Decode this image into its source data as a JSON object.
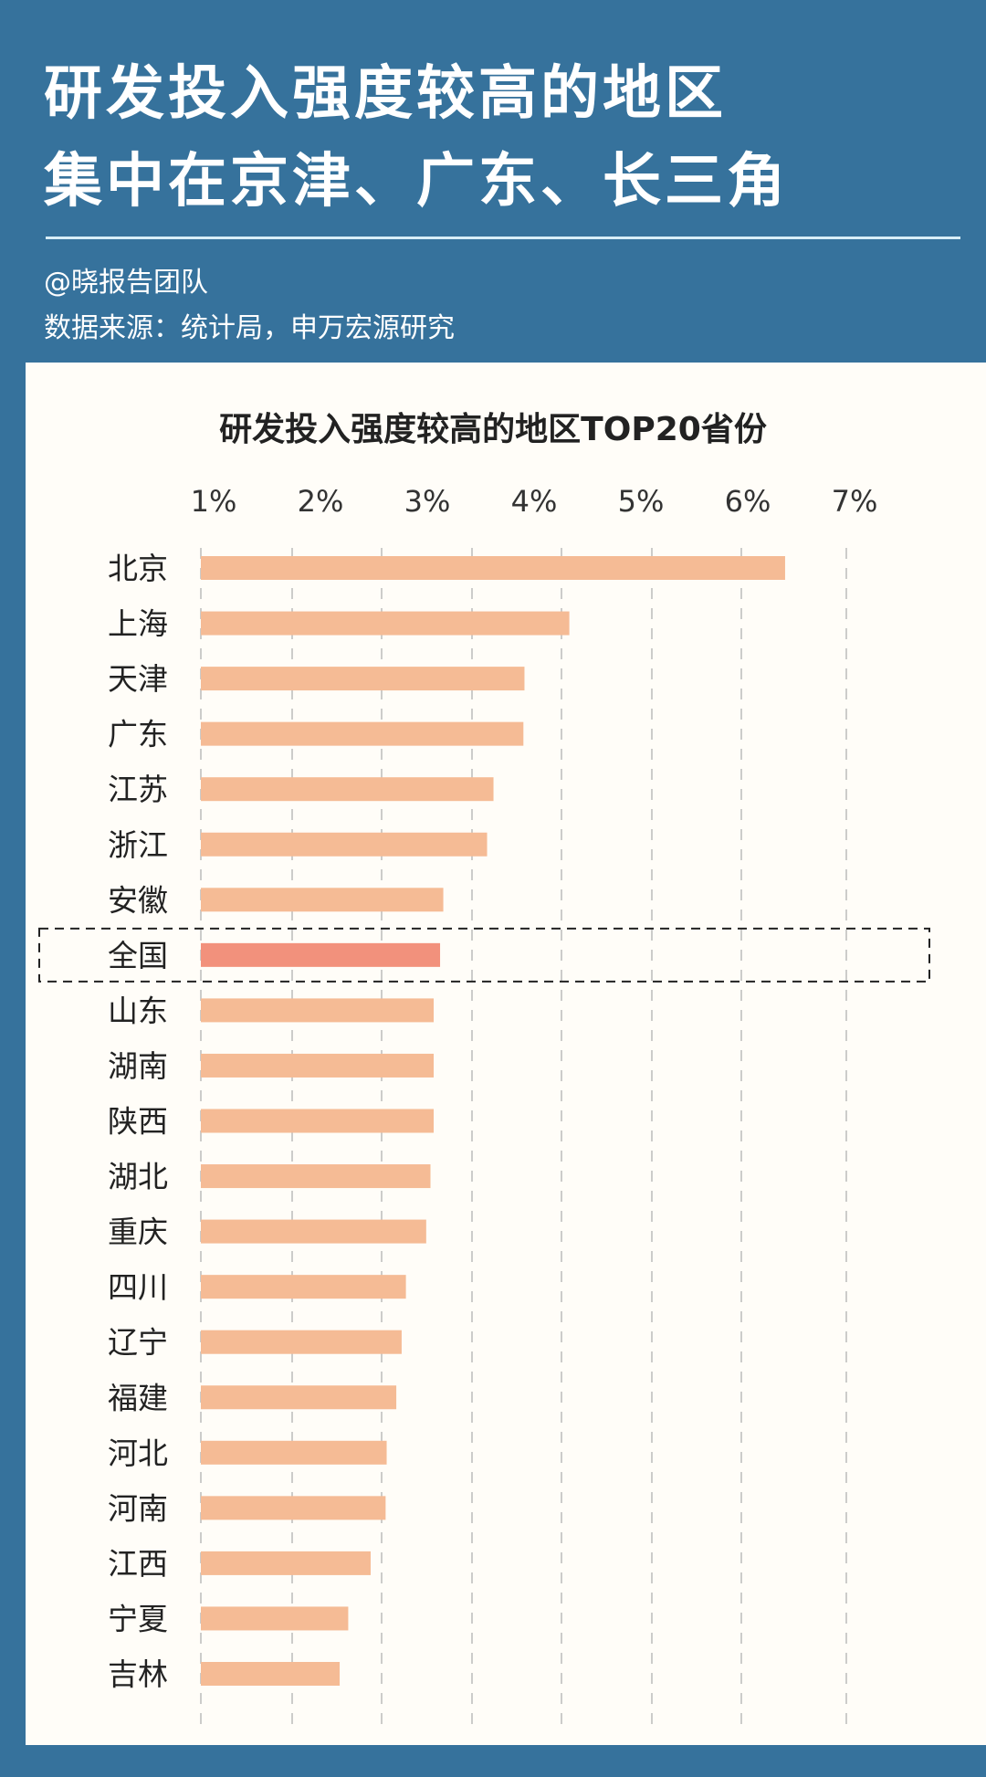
{
  "header": {
    "title_line1": "研发投入强度较高的地区",
    "title_line2": "集中在京津、广东、长三角",
    "author": "@晓报告团队",
    "source": "数据来源：统计局，申万宏源研究"
  },
  "colors": {
    "background": "#36729c",
    "bar": "#f5bb95",
    "highlight_bar": "#f2917c",
    "card": "#fffdf8"
  },
  "chart_data": {
    "type": "bar",
    "orientation": "horizontal",
    "title": "研发投入强度较高的地区TOP20省份",
    "xlabel": "",
    "ylabel": "",
    "x_ticks": [
      "1%",
      "2%",
      "3%",
      "4%",
      "5%",
      "6%",
      "7%"
    ],
    "xlim": [
      1,
      7
    ],
    "grid": "vertical-dashed",
    "highlight": "全国",
    "categories": [
      "北京",
      "上海",
      "天津",
      "广东",
      "江苏",
      "浙江",
      "安徽",
      "全国",
      "山东",
      "湖南",
      "陕西",
      "湖北",
      "重庆",
      "四川",
      "辽宁",
      "福建",
      "河北",
      "河南",
      "江西",
      "宁夏",
      "吉林"
    ],
    "values": [
      6.35,
      4.33,
      3.91,
      3.9,
      3.62,
      3.56,
      3.15,
      3.12,
      3.06,
      3.06,
      3.06,
      3.03,
      2.99,
      2.8,
      2.76,
      2.71,
      2.62,
      2.61,
      2.47,
      2.26,
      2.18
    ]
  }
}
